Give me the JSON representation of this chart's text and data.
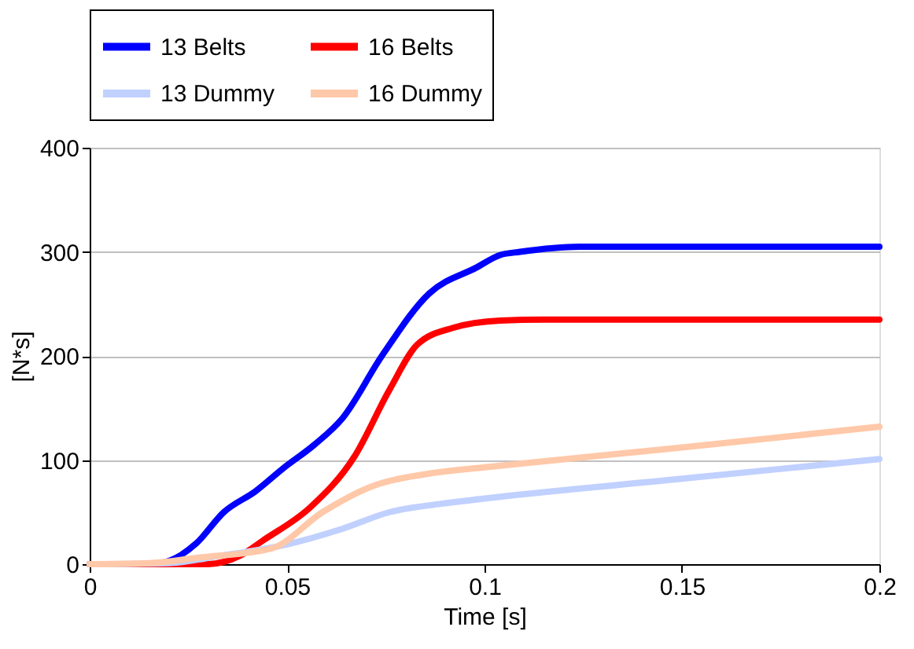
{
  "chart_data": {
    "type": "line",
    "xlabel": "Time [s]",
    "ylabel": "[N*s]",
    "xlim": [
      0,
      0.2
    ],
    "ylim": [
      0,
      400
    ],
    "xticks": [
      0,
      0.05,
      0.1,
      0.15,
      0.2
    ],
    "yticks": [
      0,
      100,
      200,
      300,
      400
    ],
    "grid": "y",
    "legend": "top",
    "marker": "none",
    "line_style": "solid",
    "series": [
      {
        "name": "13 Belts",
        "color": "#0000ff",
        "x": [
          0,
          0.015,
          0.02,
          0.027,
          0.034,
          0.042,
          0.049,
          0.057,
          0.064,
          0.074,
          0.086,
          0.098,
          0.104,
          0.109,
          0.124,
          0.15,
          0.2
        ],
        "values": [
          0,
          0,
          3,
          20,
          50,
          70,
          92,
          115,
          140,
          200,
          260,
          285,
          297,
          300,
          305,
          305,
          305
        ]
      },
      {
        "name": "16 Belts",
        "color": "#ff0000",
        "x": [
          0,
          0.03,
          0.038,
          0.044,
          0.056,
          0.067,
          0.076,
          0.083,
          0.092,
          0.104,
          0.115,
          0.15,
          0.2
        ],
        "values": [
          0,
          0,
          8,
          23,
          55,
          103,
          168,
          211,
          227,
          234,
          235,
          235,
          235
        ]
      },
      {
        "name": "13 Dummy",
        "color": "#c0d0ff",
        "x": [
          0,
          0.02,
          0.033,
          0.05,
          0.064,
          0.076,
          0.089,
          0.1,
          0.15,
          0.2
        ],
        "values": [
          0,
          1,
          8,
          19,
          34,
          50,
          58,
          63,
          82,
          101
        ]
      },
      {
        "name": "16 Dummy",
        "color": "#ffc8a8",
        "x": [
          0,
          0.015,
          0.027,
          0.046,
          0.059,
          0.071,
          0.086,
          0.1,
          0.139,
          0.15,
          0.2
        ],
        "values": [
          0,
          1,
          6,
          15,
          50,
          74,
          87,
          93,
          108,
          112,
          132
        ]
      }
    ]
  }
}
